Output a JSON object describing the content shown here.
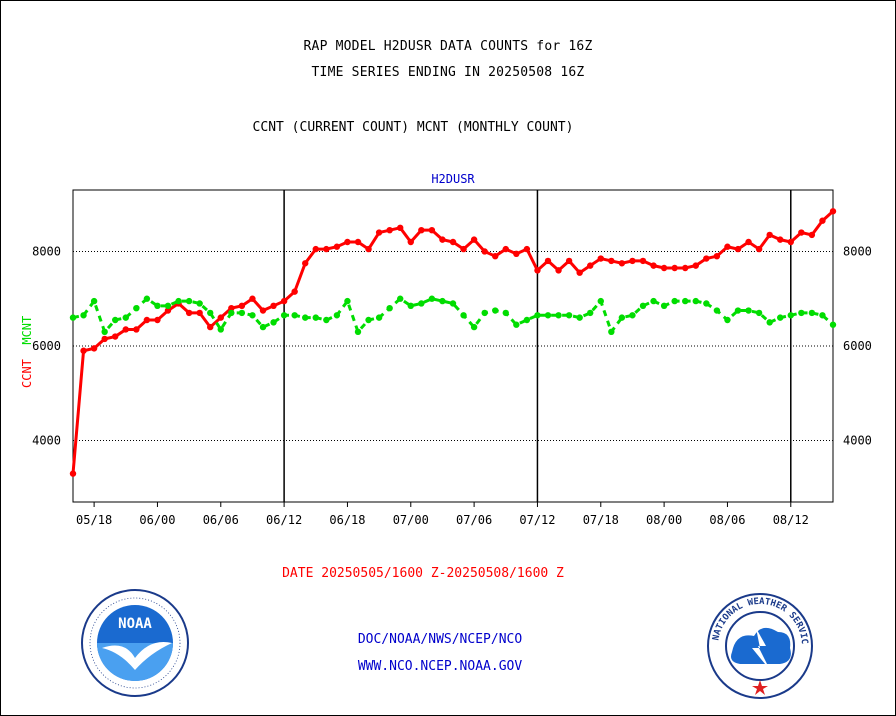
{
  "header": {
    "title_line1": "RAP MODEL H2DUSR DATA COUNTS for 16Z",
    "title_line2": "TIME SERIES ENDING IN 20250508 16Z",
    "subtitle": "CCNT (CURRENT COUNT) MCNT (MONTHLY COUNT)",
    "variable": "H2DUSR"
  },
  "axis": {
    "y_label_ccnt": "CCNT",
    "y_label_mcnt": "MCNT",
    "date_range": "DATE 20250505/1600 Z-20250508/1600 Z"
  },
  "footer": {
    "line1": "DOC/NOAA/NWS/NCEP/NCO",
    "line2": "WWW.NCO.NCEP.NOAA.GOV"
  },
  "logos": {
    "noaa_text": "NOAA",
    "nws_text": "NATIONAL WEATHER SERVICE"
  },
  "colors": {
    "ccnt": "#ff0000",
    "mcnt": "#00dd00",
    "title": "#000000",
    "footer": "#0000cc"
  },
  "chart_data": {
    "type": "line",
    "title": "RAP MODEL H2DUSR DATA COUNTS for 16Z",
    "ylim": [
      2700,
      9300
    ],
    "y_ticks": [
      4000,
      6000,
      8000
    ],
    "y_tick_labels": [
      "4000",
      "6000",
      "8000"
    ],
    "x_range": [
      0,
      72
    ],
    "x_ticks": [
      2,
      8,
      14,
      20,
      26,
      32,
      38,
      44,
      50,
      56,
      62,
      68
    ],
    "x_tick_labels": [
      "05/18",
      "06/00",
      "06/06",
      "06/12",
      "06/18",
      "07/00",
      "07/06",
      "07/12",
      "07/18",
      "08/00",
      "08/06",
      "08/12"
    ],
    "day_boundaries": [
      20,
      44,
      68
    ],
    "grid": "dotted horizontal at 4000, 6000, 8000",
    "series": [
      {
        "name": "CCNT",
        "color": "#ff0000",
        "values": [
          3300,
          5900,
          5950,
          6150,
          6200,
          6350,
          6350,
          6550,
          6550,
          6750,
          6900,
          6700,
          6700,
          6400,
          6600,
          6800,
          6850,
          7000,
          6750,
          6850,
          6950,
          7150,
          7750,
          8050,
          8050,
          8100,
          8200,
          8200,
          8050,
          8400,
          8450,
          8500,
          8200,
          8450,
          8450,
          8250,
          8200,
          8050,
          8250,
          8000,
          7900,
          8050,
          7950,
          8050,
          7600,
          7800,
          7600,
          7800,
          7550,
          7700,
          7850,
          7800,
          7750,
          7800,
          7800,
          7700,
          7650,
          7650,
          7650,
          7700,
          7850,
          7900,
          8100,
          8050,
          8200,
          8050,
          8350,
          8250,
          8200,
          8400,
          8350,
          8650,
          8850
        ]
      },
      {
        "name": "MCNT",
        "color": "#00dd00",
        "values": [
          6600,
          6650,
          6950,
          6300,
          6550,
          6600,
          6800,
          7000,
          6850,
          6850,
          6950,
          6950,
          6900,
          6700,
          6350,
          6700,
          6700,
          6650,
          6400,
          6500,
          6650,
          6650,
          6600,
          6600,
          6550,
          6650,
          6950,
          6300,
          6550,
          6600,
          6800,
          7000,
          6850,
          6900,
          7000,
          6950,
          6900,
          6650,
          6400,
          6700,
          6750,
          6700,
          6450,
          6550,
          6650,
          6650,
          6650,
          6650,
          6600,
          6700,
          6950,
          6300,
          6600,
          6650,
          6850,
          6950,
          6850,
          6950,
          6950,
          6950,
          6900,
          6750,
          6550,
          6750,
          6750,
          6700,
          6500,
          6600,
          6650,
          6700,
          6700,
          6650,
          6450
        ]
      }
    ]
  }
}
